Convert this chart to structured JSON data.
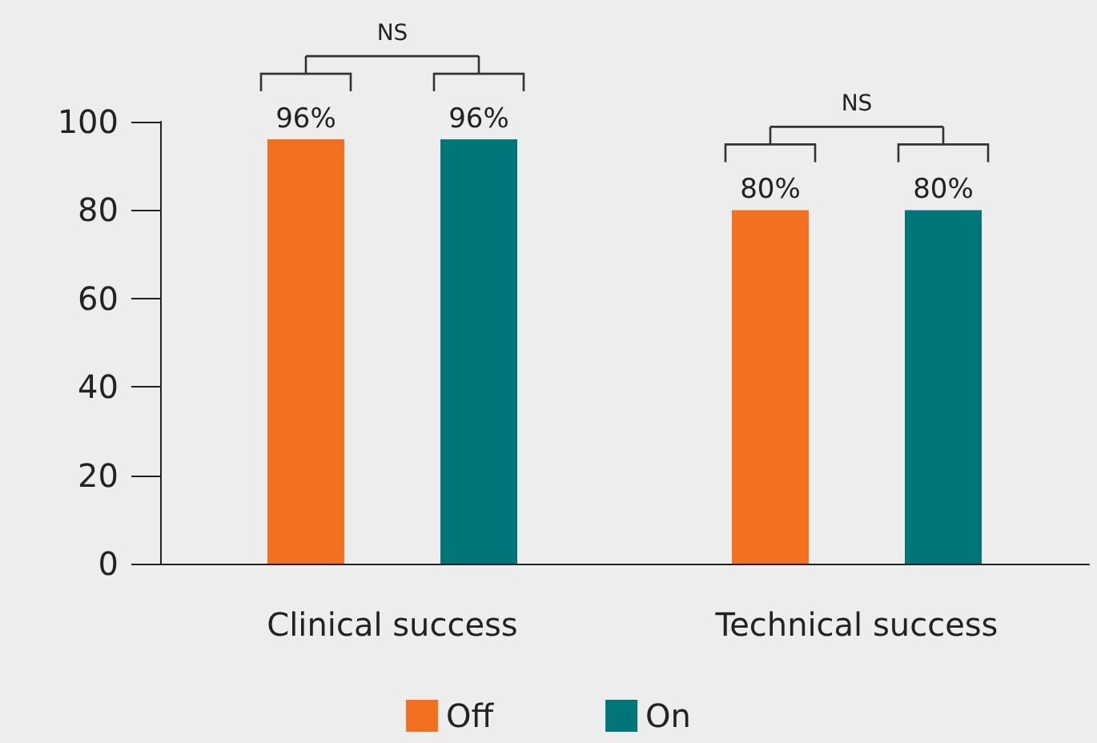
{
  "chart_data": {
    "type": "bar",
    "categories": [
      "Clinical success",
      "Technical success"
    ],
    "series": [
      {
        "name": "Off",
        "color": "#f37021",
        "values": [
          96,
          80
        ],
        "value_labels": [
          "96%",
          "80%"
        ]
      },
      {
        "name": "On",
        "color": "#00767a",
        "values": [
          96,
          80
        ],
        "value_labels": [
          "96%",
          "80%"
        ]
      }
    ],
    "ylim": [
      0,
      100
    ],
    "yticks": [
      0,
      20,
      40,
      60,
      80,
      100
    ],
    "grid": false,
    "legend": "bottom",
    "annotations": [
      "NS",
      "NS"
    ]
  }
}
